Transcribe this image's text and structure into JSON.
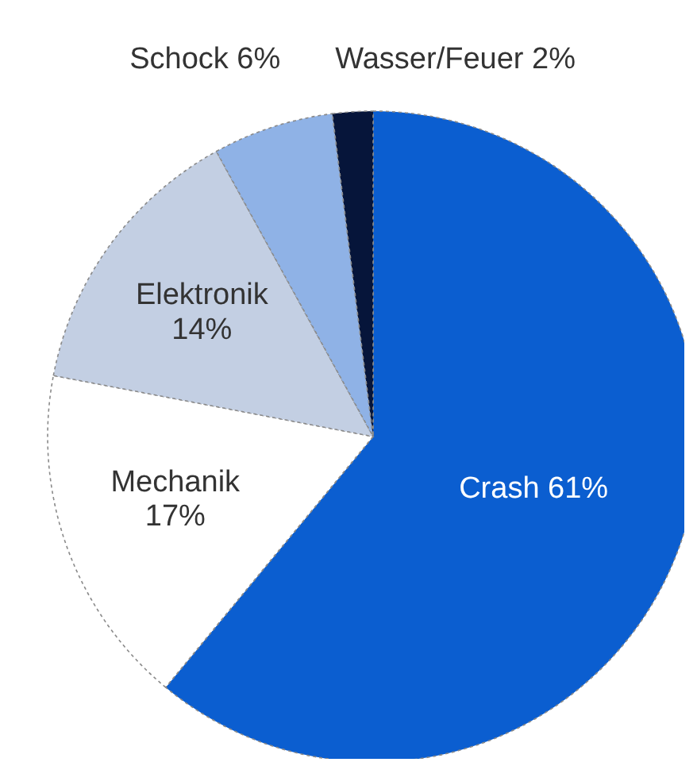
{
  "chart_data": {
    "type": "pie",
    "categories": [
      "Crash",
      "Mechanik",
      "Elektronik",
      "Schock",
      "Wasser/Feuer"
    ],
    "values": [
      61,
      17,
      14,
      6,
      2
    ],
    "value_labels": [
      "61%",
      "17%",
      "14%",
      "6%",
      "2%"
    ],
    "colors": [
      "#0b5ed0",
      "#ffffff",
      "#c3cfe3",
      "#8fb2e6",
      "#06153a"
    ]
  }
}
